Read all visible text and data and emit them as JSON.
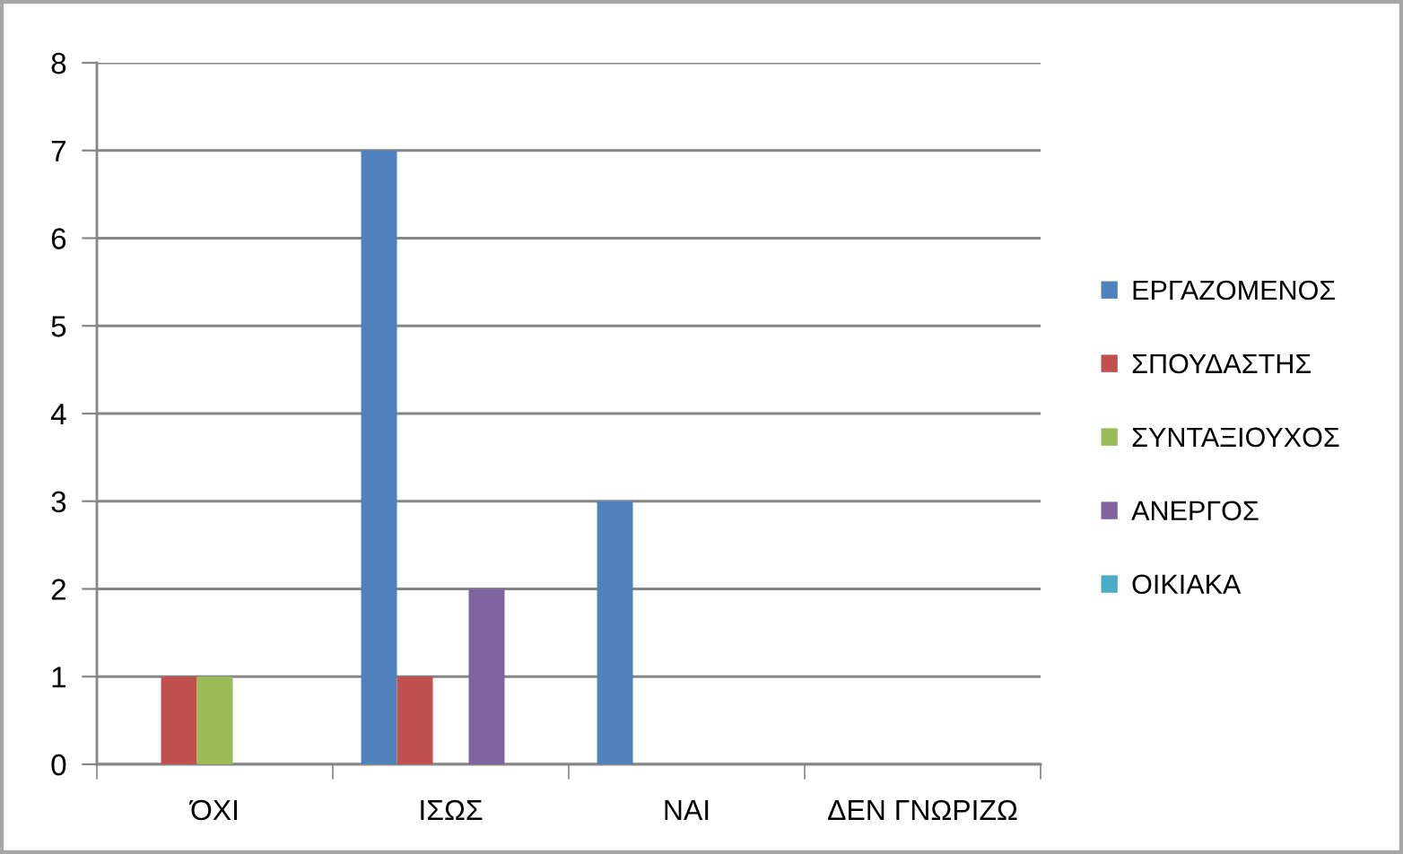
{
  "chart_data": {
    "type": "bar",
    "categories": [
      "ΌΧΙ",
      "ΙΣΩΣ",
      "ΝΑΙ",
      "ΔΕΝ ΓΝΩΡΙΖΩ"
    ],
    "series": [
      {
        "name": "ΕΡΓΑΖΟΜΕΝΟΣ",
        "color": "#4f81bd",
        "values": [
          0,
          7,
          3,
          0
        ]
      },
      {
        "name": "ΣΠΟΥΔΑΣΤΗΣ",
        "color": "#c0504d",
        "values": [
          1,
          1,
          0,
          0
        ]
      },
      {
        "name": "ΣΥΝΤΑΞΙΟΥΧΟΣ",
        "color": "#9bbb59",
        "values": [
          1,
          0,
          0,
          0
        ]
      },
      {
        "name": "ΑΝΕΡΓΟΣ",
        "color": "#8064a2",
        "values": [
          0,
          2,
          0,
          0
        ]
      },
      {
        "name": "ΟΙΚΙΑΚΑ",
        "color": "#4bacc6",
        "values": [
          0,
          0,
          0,
          0
        ]
      }
    ],
    "ylim": [
      0,
      8
    ],
    "yticks": [
      0,
      1,
      2,
      3,
      4,
      5,
      6,
      7,
      8
    ],
    "grid": "y",
    "legend": "right"
  }
}
